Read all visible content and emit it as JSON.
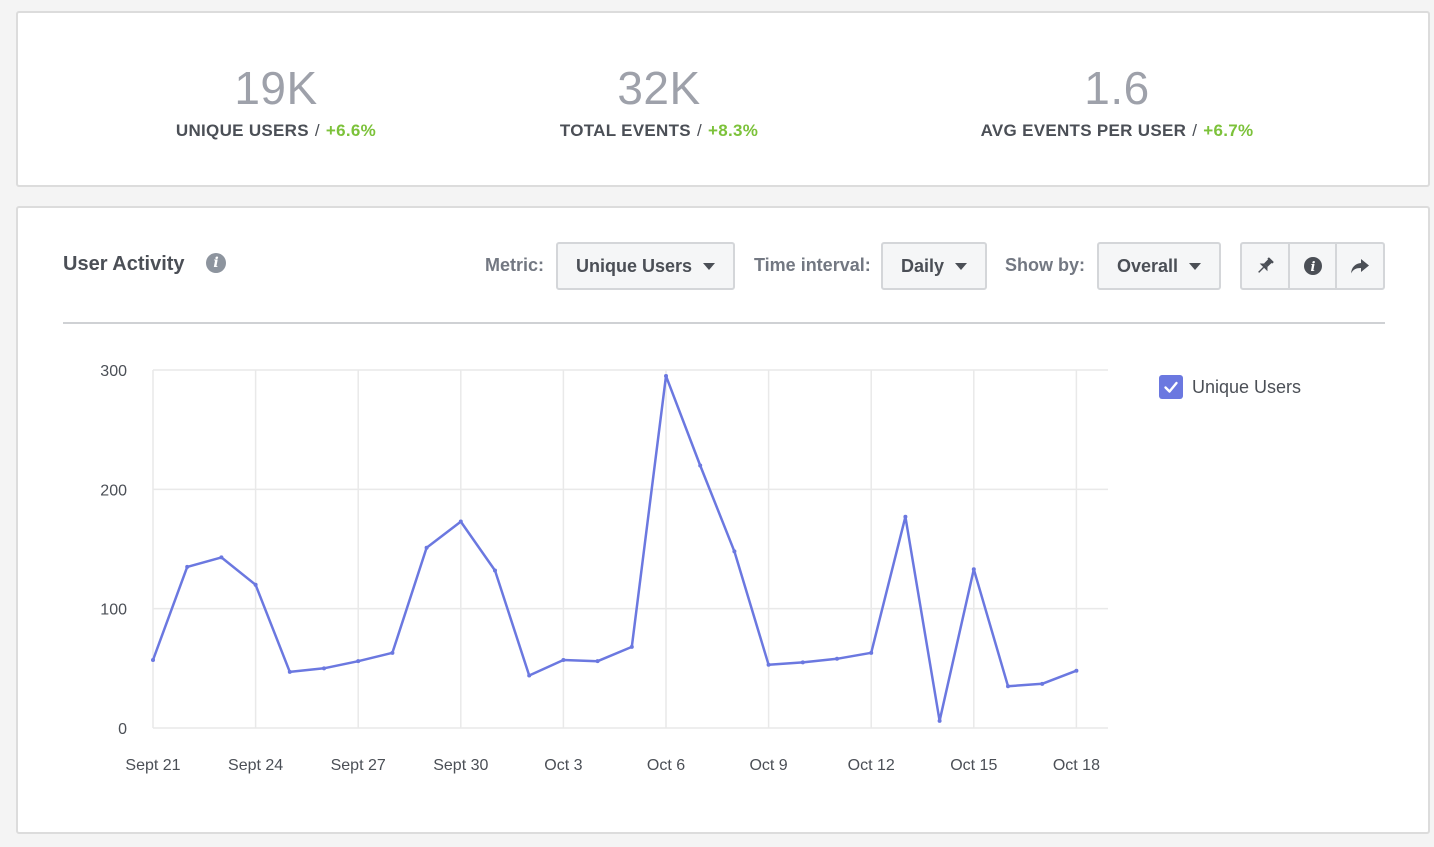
{
  "stats": [
    {
      "value": "19K",
      "label": "UNIQUE USERS",
      "sep": "/",
      "change": "+6.6%"
    },
    {
      "value": "32K",
      "label": "TOTAL EVENTS",
      "sep": "/",
      "change": "+8.3%"
    },
    {
      "value": "1.6",
      "label": "AVG EVENTS PER USER",
      "sep": "/",
      "change": "+6.7%"
    }
  ],
  "panel": {
    "title": "User Activity",
    "info_icon": "info-icon",
    "metric_label": "Metric:",
    "metric_value": "Unique Users",
    "interval_label": "Time interval:",
    "interval_value": "Daily",
    "showby_label": "Show by:",
    "showby_value": "Overall",
    "actions": [
      "pin-icon",
      "info-icon",
      "share-icon"
    ]
  },
  "colors": {
    "line": "#6b78e0",
    "positive": "#7cc23a",
    "grid": "#e9e9e9"
  },
  "chart_data": {
    "type": "line",
    "title": "",
    "xlabel": "",
    "ylabel": "",
    "ylim": [
      0,
      300
    ],
    "yticks": [
      "0",
      "100",
      "200",
      "300"
    ],
    "xtick_labels": [
      "Sept 21",
      "Sept 24",
      "Sept 27",
      "Sept 30",
      "Oct 3",
      "Oct 6",
      "Oct 9",
      "Oct 12",
      "Oct 15",
      "Oct 18"
    ],
    "x": [
      "Sept 21",
      "Sept 22",
      "Sept 23",
      "Sept 24",
      "Sept 25",
      "Sept 26",
      "Sept 27",
      "Sept 28",
      "Sept 29",
      "Sept 30",
      "Oct 1",
      "Oct 2",
      "Oct 3",
      "Oct 4",
      "Oct 5",
      "Oct 6",
      "Oct 7",
      "Oct 8",
      "Oct 9",
      "Oct 10",
      "Oct 11",
      "Oct 12",
      "Oct 13",
      "Oct 14",
      "Oct 15",
      "Oct 16",
      "Oct 17",
      "Oct 18"
    ],
    "grid": true,
    "legend_position": "top-right",
    "series": [
      {
        "name": "Unique Users",
        "values": [
          57,
          135,
          143,
          120,
          47,
          50,
          56,
          63,
          151,
          173,
          132,
          44,
          57,
          56,
          68,
          295,
          220,
          148,
          53,
          55,
          58,
          63,
          177,
          6,
          133,
          35,
          37,
          48
        ]
      }
    ]
  }
}
